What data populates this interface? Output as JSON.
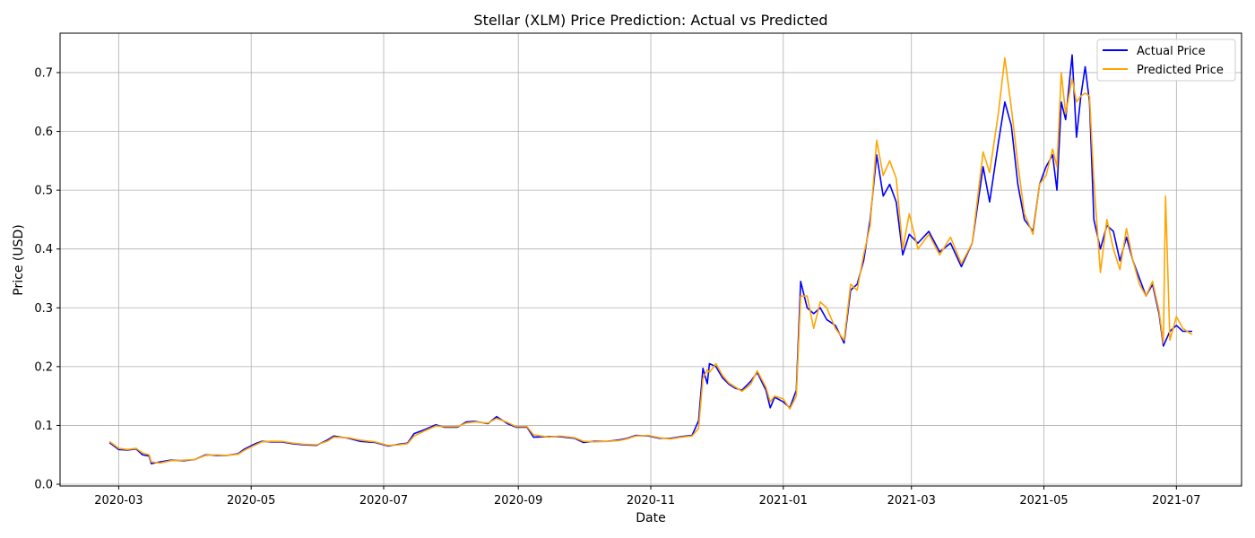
{
  "chart_data": {
    "type": "line",
    "title": "Stellar (XLM) Price Prediction: Actual vs Predicted",
    "xlabel": "Date",
    "ylabel": "Price (USD)",
    "x_tick_labels": [
      "2020-03",
      "2020-05",
      "2020-07",
      "2020-09",
      "2020-11",
      "2021-01",
      "2021-03",
      "2021-05",
      "2021-07"
    ],
    "y_tick_labels": [
      "0.0",
      "0.1",
      "0.2",
      "0.3",
      "0.4",
      "0.5",
      "0.6",
      "0.7"
    ],
    "xlim": [
      "2020-02-03",
      "2021-07-31"
    ],
    "ylim": [
      -0.003,
      0.767
    ],
    "grid": true,
    "legend": "upper right",
    "colors": {
      "actual": "#0000ff",
      "predicted": "#ffa500",
      "grid": "#b0b0b0"
    },
    "series": [
      {
        "name": "Actual Price",
        "points": [
          [
            "2020-02-26",
            0.07
          ],
          [
            "2020-03-01",
            0.059
          ],
          [
            "2020-03-05",
            0.058
          ],
          [
            "2020-03-09",
            0.06
          ],
          [
            "2020-03-12",
            0.05
          ],
          [
            "2020-03-15",
            0.048
          ],
          [
            "2020-03-16",
            0.035
          ],
          [
            "2020-03-20",
            0.038
          ],
          [
            "2020-03-25",
            0.041
          ],
          [
            "2020-03-31",
            0.04
          ],
          [
            "2020-04-05",
            0.042
          ],
          [
            "2020-04-10",
            0.05
          ],
          [
            "2020-04-15",
            0.049
          ],
          [
            "2020-04-20",
            0.049
          ],
          [
            "2020-04-25",
            0.052
          ],
          [
            "2020-04-28",
            0.06
          ],
          [
            "2020-05-03",
            0.069
          ],
          [
            "2020-05-06",
            0.073
          ],
          [
            "2020-05-10",
            0.072
          ],
          [
            "2020-05-15",
            0.072
          ],
          [
            "2020-05-20",
            0.069
          ],
          [
            "2020-05-25",
            0.067
          ],
          [
            "2020-05-31",
            0.066
          ],
          [
            "2020-06-05",
            0.075
          ],
          [
            "2020-06-08",
            0.082
          ],
          [
            "2020-06-15",
            0.078
          ],
          [
            "2020-06-20",
            0.073
          ],
          [
            "2020-06-27",
            0.071
          ],
          [
            "2020-07-03",
            0.065
          ],
          [
            "2020-07-08",
            0.068
          ],
          [
            "2020-07-12",
            0.07
          ],
          [
            "2020-07-15",
            0.086
          ],
          [
            "2020-07-20",
            0.093
          ],
          [
            "2020-07-25",
            0.101
          ],
          [
            "2020-07-29",
            0.097
          ],
          [
            "2020-08-04",
            0.097
          ],
          [
            "2020-08-08",
            0.106
          ],
          [
            "2020-08-12",
            0.107
          ],
          [
            "2020-08-18",
            0.103
          ],
          [
            "2020-08-22",
            0.115
          ],
          [
            "2020-08-27",
            0.103
          ],
          [
            "2020-08-31",
            0.097
          ],
          [
            "2020-09-05",
            0.097
          ],
          [
            "2020-09-08",
            0.08
          ],
          [
            "2020-09-15",
            0.081
          ],
          [
            "2020-09-20",
            0.081
          ],
          [
            "2020-09-27",
            0.078
          ],
          [
            "2020-10-01",
            0.071
          ],
          [
            "2020-10-06",
            0.073
          ],
          [
            "2020-10-12",
            0.073
          ],
          [
            "2020-10-17",
            0.075
          ],
          [
            "2020-10-21",
            0.078
          ],
          [
            "2020-10-25",
            0.083
          ],
          [
            "2020-10-31",
            0.082
          ],
          [
            "2020-11-05",
            0.078
          ],
          [
            "2020-11-10",
            0.078
          ],
          [
            "2020-11-15",
            0.081
          ],
          [
            "2020-11-20",
            0.083
          ],
          [
            "2020-11-23",
            0.108
          ],
          [
            "2020-11-25",
            0.197
          ],
          [
            "2020-11-27",
            0.171
          ],
          [
            "2020-11-28",
            0.205
          ],
          [
            "2020-12-01",
            0.2
          ],
          [
            "2020-12-04",
            0.181
          ],
          [
            "2020-12-07",
            0.17
          ],
          [
            "2020-12-10",
            0.163
          ],
          [
            "2020-12-13",
            0.16
          ],
          [
            "2020-12-17",
            0.175
          ],
          [
            "2020-12-20",
            0.19
          ],
          [
            "2020-12-24",
            0.16
          ],
          [
            "2020-12-26",
            0.13
          ],
          [
            "2020-12-28",
            0.148
          ],
          [
            "2021-01-01",
            0.14
          ],
          [
            "2021-01-04",
            0.13
          ],
          [
            "2021-01-07",
            0.16
          ],
          [
            "2021-01-09",
            0.345
          ],
          [
            "2021-01-12",
            0.3
          ],
          [
            "2021-01-15",
            0.29
          ],
          [
            "2021-01-18",
            0.3
          ],
          [
            "2021-01-21",
            0.28
          ],
          [
            "2021-01-25",
            0.27
          ],
          [
            "2021-01-29",
            0.24
          ],
          [
            "2021-02-01",
            0.33
          ],
          [
            "2021-02-04",
            0.34
          ],
          [
            "2021-02-07",
            0.38
          ],
          [
            "2021-02-10",
            0.45
          ],
          [
            "2021-02-13",
            0.56
          ],
          [
            "2021-02-16",
            0.49
          ],
          [
            "2021-02-19",
            0.51
          ],
          [
            "2021-02-22",
            0.48
          ],
          [
            "2021-02-25",
            0.39
          ],
          [
            "2021-02-28",
            0.425
          ],
          [
            "2021-03-04",
            0.41
          ],
          [
            "2021-03-09",
            0.43
          ],
          [
            "2021-03-14",
            0.395
          ],
          [
            "2021-03-19",
            0.41
          ],
          [
            "2021-03-24",
            0.37
          ],
          [
            "2021-03-29",
            0.41
          ],
          [
            "2021-04-03",
            0.54
          ],
          [
            "2021-04-06",
            0.48
          ],
          [
            "2021-04-10",
            0.58
          ],
          [
            "2021-04-13",
            0.65
          ],
          [
            "2021-04-16",
            0.61
          ],
          [
            "2021-04-19",
            0.51
          ],
          [
            "2021-04-22",
            0.45
          ],
          [
            "2021-04-26",
            0.43
          ],
          [
            "2021-04-29",
            0.51
          ],
          [
            "2021-05-02",
            0.54
          ],
          [
            "2021-05-05",
            0.56
          ],
          [
            "2021-05-07",
            0.5
          ],
          [
            "2021-05-09",
            0.65
          ],
          [
            "2021-05-11",
            0.62
          ],
          [
            "2021-05-14",
            0.73
          ],
          [
            "2021-05-16",
            0.59
          ],
          [
            "2021-05-18",
            0.66
          ],
          [
            "2021-05-20",
            0.71
          ],
          [
            "2021-05-22",
            0.65
          ],
          [
            "2021-05-24",
            0.45
          ],
          [
            "2021-05-27",
            0.4
          ],
          [
            "2021-05-30",
            0.44
          ],
          [
            "2021-06-02",
            0.43
          ],
          [
            "2021-06-05",
            0.38
          ],
          [
            "2021-06-08",
            0.42
          ],
          [
            "2021-06-11",
            0.38
          ],
          [
            "2021-06-14",
            0.35
          ],
          [
            "2021-06-17",
            0.32
          ],
          [
            "2021-06-20",
            0.34
          ],
          [
            "2021-06-23",
            0.29
          ],
          [
            "2021-06-25",
            0.235
          ],
          [
            "2021-06-28",
            0.26
          ],
          [
            "2021-07-01",
            0.27
          ],
          [
            "2021-07-04",
            0.26
          ],
          [
            "2021-07-08",
            0.26
          ]
        ]
      },
      {
        "name": "Predicted Price",
        "points": [
          [
            "2020-02-26",
            0.072
          ],
          [
            "2020-03-01",
            0.061
          ],
          [
            "2020-03-05",
            0.059
          ],
          [
            "2020-03-09",
            0.061
          ],
          [
            "2020-03-12",
            0.053
          ],
          [
            "2020-03-15",
            0.05
          ],
          [
            "2020-03-16",
            0.038
          ],
          [
            "2020-03-20",
            0.036
          ],
          [
            "2020-03-25",
            0.04
          ],
          [
            "2020-03-31",
            0.041
          ],
          [
            "2020-04-05",
            0.042
          ],
          [
            "2020-04-10",
            0.049
          ],
          [
            "2020-04-15",
            0.05
          ],
          [
            "2020-04-20",
            0.049
          ],
          [
            "2020-04-25",
            0.051
          ],
          [
            "2020-04-28",
            0.058
          ],
          [
            "2020-05-03",
            0.067
          ],
          [
            "2020-05-06",
            0.072
          ],
          [
            "2020-05-10",
            0.073
          ],
          [
            "2020-05-15",
            0.073
          ],
          [
            "2020-05-20",
            0.07
          ],
          [
            "2020-05-25",
            0.068
          ],
          [
            "2020-05-31",
            0.067
          ],
          [
            "2020-06-05",
            0.073
          ],
          [
            "2020-06-08",
            0.08
          ],
          [
            "2020-06-15",
            0.079
          ],
          [
            "2020-06-20",
            0.075
          ],
          [
            "2020-06-27",
            0.072
          ],
          [
            "2020-07-03",
            0.066
          ],
          [
            "2020-07-08",
            0.067
          ],
          [
            "2020-07-12",
            0.069
          ],
          [
            "2020-07-15",
            0.082
          ],
          [
            "2020-07-20",
            0.091
          ],
          [
            "2020-07-25",
            0.099
          ],
          [
            "2020-07-29",
            0.098
          ],
          [
            "2020-08-04",
            0.098
          ],
          [
            "2020-08-08",
            0.104
          ],
          [
            "2020-08-12",
            0.106
          ],
          [
            "2020-08-18",
            0.104
          ],
          [
            "2020-08-22",
            0.112
          ],
          [
            "2020-08-27",
            0.105
          ],
          [
            "2020-08-31",
            0.098
          ],
          [
            "2020-09-05",
            0.098
          ],
          [
            "2020-09-08",
            0.084
          ],
          [
            "2020-09-15",
            0.08
          ],
          [
            "2020-09-20",
            0.082
          ],
          [
            "2020-09-27",
            0.079
          ],
          [
            "2020-10-01",
            0.073
          ],
          [
            "2020-10-06",
            0.072
          ],
          [
            "2020-10-12",
            0.073
          ],
          [
            "2020-10-17",
            0.074
          ],
          [
            "2020-10-21",
            0.077
          ],
          [
            "2020-10-25",
            0.082
          ],
          [
            "2020-10-31",
            0.083
          ],
          [
            "2020-11-05",
            0.079
          ],
          [
            "2020-11-10",
            0.077
          ],
          [
            "2020-11-15",
            0.08
          ],
          [
            "2020-11-20",
            0.082
          ],
          [
            "2020-11-23",
            0.095
          ],
          [
            "2020-11-25",
            0.18
          ],
          [
            "2020-11-27",
            0.195
          ],
          [
            "2020-11-28",
            0.19
          ],
          [
            "2020-12-01",
            0.205
          ],
          [
            "2020-12-04",
            0.185
          ],
          [
            "2020-12-07",
            0.172
          ],
          [
            "2020-12-10",
            0.165
          ],
          [
            "2020-12-13",
            0.158
          ],
          [
            "2020-12-17",
            0.17
          ],
          [
            "2020-12-20",
            0.193
          ],
          [
            "2020-12-24",
            0.165
          ],
          [
            "2020-12-26",
            0.14
          ],
          [
            "2020-12-28",
            0.15
          ],
          [
            "2021-01-01",
            0.145
          ],
          [
            "2021-01-04",
            0.128
          ],
          [
            "2021-01-07",
            0.15
          ],
          [
            "2021-01-09",
            0.32
          ],
          [
            "2021-01-12",
            0.32
          ],
          [
            "2021-01-15",
            0.265
          ],
          [
            "2021-01-18",
            0.31
          ],
          [
            "2021-01-21",
            0.3
          ],
          [
            "2021-01-25",
            0.265
          ],
          [
            "2021-01-29",
            0.245
          ],
          [
            "2021-02-01",
            0.34
          ],
          [
            "2021-02-04",
            0.33
          ],
          [
            "2021-02-07",
            0.39
          ],
          [
            "2021-02-10",
            0.44
          ],
          [
            "2021-02-13",
            0.585
          ],
          [
            "2021-02-16",
            0.525
          ],
          [
            "2021-02-19",
            0.55
          ],
          [
            "2021-02-22",
            0.52
          ],
          [
            "2021-02-25",
            0.4
          ],
          [
            "2021-02-28",
            0.46
          ],
          [
            "2021-03-04",
            0.4
          ],
          [
            "2021-03-09",
            0.425
          ],
          [
            "2021-03-14",
            0.39
          ],
          [
            "2021-03-19",
            0.42
          ],
          [
            "2021-03-24",
            0.375
          ],
          [
            "2021-03-29",
            0.41
          ],
          [
            "2021-04-03",
            0.565
          ],
          [
            "2021-04-06",
            0.53
          ],
          [
            "2021-04-10",
            0.63
          ],
          [
            "2021-04-13",
            0.725
          ],
          [
            "2021-04-16",
            0.64
          ],
          [
            "2021-04-19",
            0.545
          ],
          [
            "2021-04-22",
            0.46
          ],
          [
            "2021-04-26",
            0.425
          ],
          [
            "2021-04-29",
            0.51
          ],
          [
            "2021-05-02",
            0.525
          ],
          [
            "2021-05-05",
            0.57
          ],
          [
            "2021-05-07",
            0.54
          ],
          [
            "2021-05-09",
            0.7
          ],
          [
            "2021-05-11",
            0.63
          ],
          [
            "2021-05-14",
            0.69
          ],
          [
            "2021-05-16",
            0.65
          ],
          [
            "2021-05-18",
            0.66
          ],
          [
            "2021-05-20",
            0.665
          ],
          [
            "2021-05-22",
            0.66
          ],
          [
            "2021-05-24",
            0.515
          ],
          [
            "2021-05-27",
            0.36
          ],
          [
            "2021-05-30",
            0.45
          ],
          [
            "2021-06-02",
            0.4
          ],
          [
            "2021-06-05",
            0.365
          ],
          [
            "2021-06-08",
            0.435
          ],
          [
            "2021-06-11",
            0.38
          ],
          [
            "2021-06-14",
            0.34
          ],
          [
            "2021-06-17",
            0.32
          ],
          [
            "2021-06-20",
            0.345
          ],
          [
            "2021-06-23",
            0.295
          ],
          [
            "2021-06-25",
            0.24
          ],
          [
            "2021-06-26",
            0.49
          ],
          [
            "2021-06-28",
            0.245
          ],
          [
            "2021-07-01",
            0.285
          ],
          [
            "2021-07-04",
            0.265
          ],
          [
            "2021-07-08",
            0.255
          ]
        ]
      }
    ]
  }
}
